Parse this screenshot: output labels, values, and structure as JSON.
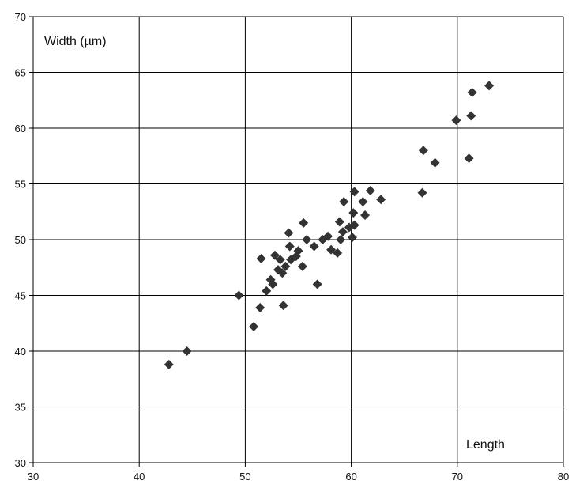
{
  "chart_data": {
    "type": "scatter",
    "xlabel": "Length",
    "ylabel": "Width (µm)",
    "xlim": [
      30,
      80
    ],
    "ylim": [
      30,
      70
    ],
    "x_ticks": [
      30,
      40,
      50,
      60,
      70,
      80
    ],
    "y_ticks": [
      30,
      35,
      40,
      45,
      50,
      55,
      60,
      65,
      70
    ],
    "grid": true,
    "legend": "none",
    "marker": "diamond",
    "marker_color": "#333333",
    "series": [
      {
        "points": [
          [
            42.8,
            38.8
          ],
          [
            44.5,
            40.0
          ],
          [
            49.4,
            45.0
          ],
          [
            50.8,
            42.2
          ],
          [
            51.4,
            43.9
          ],
          [
            51.5,
            48.3
          ],
          [
            52.0,
            45.4
          ],
          [
            52.4,
            46.4
          ],
          [
            52.6,
            46.0
          ],
          [
            52.8,
            48.6
          ],
          [
            53.1,
            47.3
          ],
          [
            53.3,
            48.2
          ],
          [
            53.5,
            47.0
          ],
          [
            53.6,
            44.1
          ],
          [
            53.8,
            47.6
          ],
          [
            54.1,
            50.6
          ],
          [
            54.2,
            49.4
          ],
          [
            54.3,
            48.2
          ],
          [
            54.8,
            48.5
          ],
          [
            55.0,
            49.0
          ],
          [
            55.4,
            47.6
          ],
          [
            55.5,
            51.5
          ],
          [
            55.8,
            50.0
          ],
          [
            56.5,
            49.4
          ],
          [
            56.8,
            46.0
          ],
          [
            57.3,
            50.0
          ],
          [
            57.8,
            50.3
          ],
          [
            58.1,
            49.1
          ],
          [
            58.7,
            48.8
          ],
          [
            58.9,
            51.6
          ],
          [
            59.0,
            50.0
          ],
          [
            59.2,
            50.7
          ],
          [
            59.3,
            53.4
          ],
          [
            59.8,
            51.1
          ],
          [
            60.1,
            50.2
          ],
          [
            60.2,
            52.4
          ],
          [
            60.3,
            54.3
          ],
          [
            60.3,
            51.3
          ],
          [
            61.1,
            53.4
          ],
          [
            61.3,
            52.2
          ],
          [
            61.8,
            54.4
          ],
          [
            62.8,
            53.6
          ],
          [
            66.7,
            54.2
          ],
          [
            66.8,
            58.0
          ],
          [
            67.9,
            56.9
          ],
          [
            69.9,
            60.7
          ],
          [
            71.1,
            57.3
          ],
          [
            71.3,
            61.1
          ],
          [
            71.4,
            63.2
          ],
          [
            73.0,
            63.8
          ]
        ]
      }
    ]
  }
}
